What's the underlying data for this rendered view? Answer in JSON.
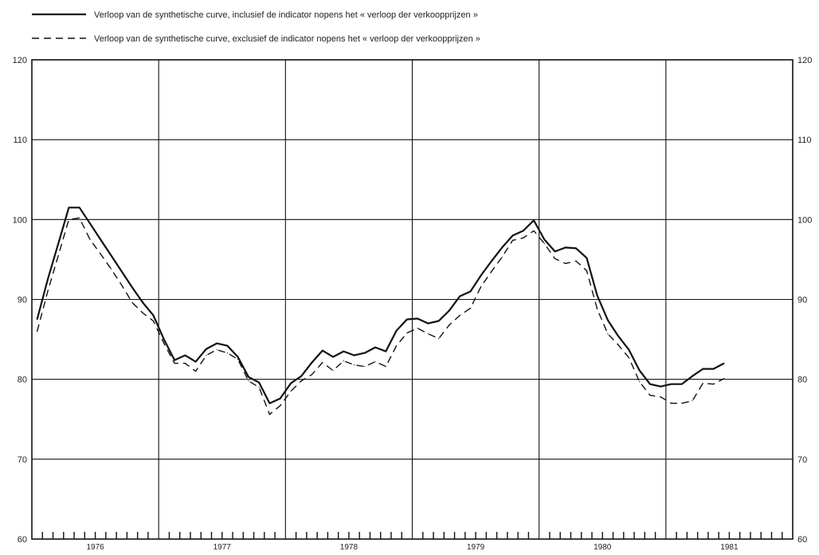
{
  "chart_data": {
    "type": "line",
    "title": "",
    "xlabel": "",
    "ylabel": "",
    "ylim": [
      60,
      120
    ],
    "yticks": [
      60,
      70,
      80,
      90,
      100,
      110,
      120
    ],
    "ytick_labels_left": [
      "60",
      "70",
      "80",
      "90",
      "100",
      "110",
      "120"
    ],
    "ytick_labels_right": [
      "60",
      "70",
      "80",
      "90",
      "100",
      "110",
      "120"
    ],
    "x_period_start": "1976-01",
    "x_period_end": "1981-12",
    "x_year_labels": [
      "1976",
      "1977",
      "1978",
      "1979",
      "1980",
      "1981"
    ],
    "x_minor_tick": "month",
    "grid": true,
    "legend_position": "top-left",
    "series": [
      {
        "name": "Verloop van de synthetische curve, inclusief de indicator nopens het « verloop der verkoopprijzen »",
        "style": "solid",
        "color": "#111111",
        "points": [
          [
            "1976-01",
            87.5
          ],
          [
            "1976-02",
            92.5
          ],
          [
            "1976-03",
            97.0
          ],
          [
            "1976-04",
            101.5
          ],
          [
            "1976-05",
            101.5
          ],
          [
            "1976-06",
            99.5
          ],
          [
            "1976-07",
            97.5
          ],
          [
            "1976-08",
            95.5
          ],
          [
            "1976-09",
            93.5
          ],
          [
            "1976-10",
            91.5
          ],
          [
            "1976-11",
            89.6
          ],
          [
            "1976-12",
            88.0
          ],
          [
            "1977-01",
            85.0
          ],
          [
            "1977-02",
            82.4
          ],
          [
            "1977-03",
            83.0
          ],
          [
            "1977-04",
            82.2
          ],
          [
            "1977-05",
            83.8
          ],
          [
            "1977-06",
            84.5
          ],
          [
            "1977-07",
            84.2
          ],
          [
            "1977-08",
            82.8
          ],
          [
            "1977-09",
            80.3
          ],
          [
            "1977-10",
            79.6
          ],
          [
            "1977-11",
            77.0
          ],
          [
            "1977-12",
            77.6
          ],
          [
            "1978-01",
            79.5
          ],
          [
            "1978-02",
            80.4
          ],
          [
            "1978-03",
            82.1
          ],
          [
            "1978-04",
            83.6
          ],
          [
            "1978-05",
            82.8
          ],
          [
            "1978-06",
            83.5
          ],
          [
            "1978-07",
            83.0
          ],
          [
            "1978-08",
            83.3
          ],
          [
            "1978-09",
            84.0
          ],
          [
            "1978-10",
            83.5
          ],
          [
            "1978-11",
            86.1
          ],
          [
            "1978-12",
            87.5
          ],
          [
            "1979-01",
            87.6
          ],
          [
            "1979-02",
            87.0
          ],
          [
            "1979-03",
            87.3
          ],
          [
            "1979-04",
            88.6
          ],
          [
            "1979-05",
            90.4
          ],
          [
            "1979-06",
            91.0
          ],
          [
            "1979-07",
            93.0
          ],
          [
            "1979-08",
            94.8
          ],
          [
            "1979-09",
            96.5
          ],
          [
            "1979-10",
            98.0
          ],
          [
            "1979-11",
            98.6
          ],
          [
            "1979-12",
            99.9
          ],
          [
            "1980-01",
            97.5
          ],
          [
            "1980-02",
            96.0
          ],
          [
            "1980-03",
            96.5
          ],
          [
            "1980-04",
            96.4
          ],
          [
            "1980-05",
            95.2
          ],
          [
            "1980-06",
            90.5
          ],
          [
            "1980-07",
            87.4
          ],
          [
            "1980-08",
            85.4
          ],
          [
            "1980-09",
            83.7
          ],
          [
            "1980-10",
            81.1
          ],
          [
            "1980-11",
            79.4
          ],
          [
            "1980-12",
            79.1
          ],
          [
            "1981-01",
            79.4
          ],
          [
            "1981-02",
            79.4
          ],
          [
            "1981-03",
            80.4
          ],
          [
            "1981-04",
            81.3
          ],
          [
            "1981-05",
            81.3
          ],
          [
            "1981-06",
            82.0
          ]
        ]
      },
      {
        "name": "Verloop van de synthetische curve, exclusief de indicator nopens het « verloop der verkoopprijzen »",
        "style": "dashed",
        "color": "#111111",
        "points": [
          [
            "1976-01",
            86.0
          ],
          [
            "1976-02",
            91.0
          ],
          [
            "1976-03",
            95.5
          ],
          [
            "1976-04",
            100.0
          ],
          [
            "1976-05",
            100.2
          ],
          [
            "1976-06",
            97.5
          ],
          [
            "1976-07",
            95.7
          ],
          [
            "1976-08",
            93.8
          ],
          [
            "1976-09",
            91.8
          ],
          [
            "1976-10",
            89.6
          ],
          [
            "1976-11",
            88.3
          ],
          [
            "1976-12",
            87.3
          ],
          [
            "1977-01",
            84.5
          ],
          [
            "1977-02",
            82.0
          ],
          [
            "1977-03",
            82.0
          ],
          [
            "1977-04",
            81.0
          ],
          [
            "1977-05",
            83.0
          ],
          [
            "1977-06",
            83.7
          ],
          [
            "1977-07",
            83.3
          ],
          [
            "1977-08",
            82.5
          ],
          [
            "1977-09",
            79.8
          ],
          [
            "1977-10",
            79.0
          ],
          [
            "1977-11",
            75.6
          ],
          [
            "1977-12",
            76.7
          ],
          [
            "1978-01",
            78.5
          ],
          [
            "1978-02",
            79.8
          ],
          [
            "1978-03",
            80.6
          ],
          [
            "1978-04",
            82.1
          ],
          [
            "1978-05",
            81.1
          ],
          [
            "1978-06",
            82.3
          ],
          [
            "1978-07",
            81.8
          ],
          [
            "1978-08",
            81.6
          ],
          [
            "1978-09",
            82.2
          ],
          [
            "1978-10",
            81.6
          ],
          [
            "1978-11",
            84.2
          ],
          [
            "1978-12",
            85.8
          ],
          [
            "1979-01",
            86.4
          ],
          [
            "1979-02",
            85.7
          ],
          [
            "1979-03",
            85.1
          ],
          [
            "1979-04",
            86.8
          ],
          [
            "1979-05",
            88.0
          ],
          [
            "1979-06",
            88.9
          ],
          [
            "1979-07",
            91.6
          ],
          [
            "1979-08",
            93.5
          ],
          [
            "1979-09",
            95.3
          ],
          [
            "1979-10",
            97.4
          ],
          [
            "1979-11",
            97.7
          ],
          [
            "1979-12",
            98.6
          ],
          [
            "1980-01",
            97.0
          ],
          [
            "1980-02",
            95.1
          ],
          [
            "1980-03",
            94.5
          ],
          [
            "1980-04",
            94.8
          ],
          [
            "1980-05",
            93.6
          ],
          [
            "1980-06",
            88.8
          ],
          [
            "1980-07",
            85.7
          ],
          [
            "1980-08",
            84.3
          ],
          [
            "1980-09",
            82.7
          ],
          [
            "1980-10",
            79.7
          ],
          [
            "1980-11",
            78.0
          ],
          [
            "1980-12",
            77.8
          ],
          [
            "1981-01",
            77.0
          ],
          [
            "1981-02",
            77.0
          ],
          [
            "1981-03",
            77.3
          ],
          [
            "1981-04",
            79.5
          ],
          [
            "1981-05",
            79.4
          ],
          [
            "1981-06",
            80.1
          ]
        ]
      }
    ]
  }
}
